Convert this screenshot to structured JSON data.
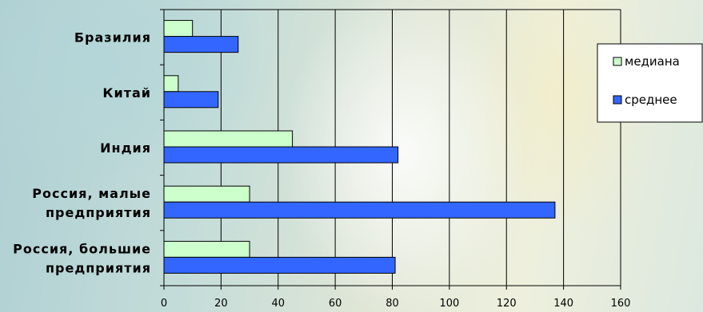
{
  "chart_data": {
    "type": "bar",
    "orientation": "horizontal",
    "categories": [
      [
        "Бразилия"
      ],
      [
        "Китай"
      ],
      [
        "Индия"
      ],
      [
        "Россия, малые",
        "предприятия"
      ],
      [
        "Россия, большие",
        "предприятия"
      ]
    ],
    "series": [
      {
        "name": "медиана",
        "color": "#ccffcc",
        "values": [
          10,
          5,
          45,
          30,
          30
        ]
      },
      {
        "name": "среднее",
        "color": "#3366ff",
        "values": [
          26,
          19,
          82,
          137,
          81
        ]
      }
    ],
    "xlim": [
      0,
      160
    ],
    "xticks": [
      "0",
      "20",
      "40",
      "60",
      "80",
      "100",
      "120",
      "140",
      "160"
    ],
    "grid": true,
    "legend_position": "right"
  }
}
